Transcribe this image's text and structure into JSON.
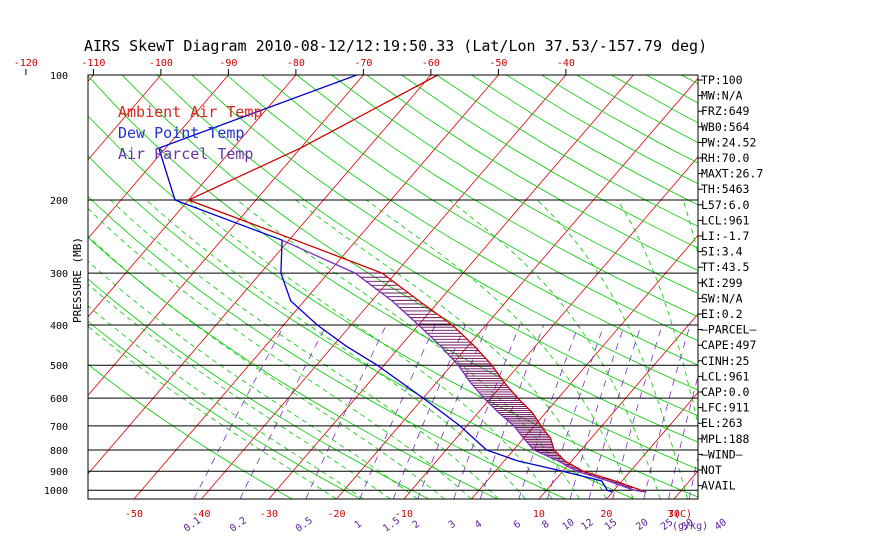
{
  "title": "AIRS SkewT Diagram 2010-08-12/12:19:50.33 (Lat/Lon 37.53/-157.79 deg)",
  "colors": {
    "frame": "#000000",
    "isotherm": "#dd0000",
    "dry_adiabat": "#00cc00",
    "moist_adiabat": "#00cc00",
    "mixing_ratio": "#7a2fbf",
    "temperature": "#cc0000",
    "dewpoint": "#0000cc",
    "parcel": "#7a2fbf",
    "hatch": "#6a0d5a"
  },
  "chart_data": {
    "type": "line",
    "subtype": "skew-T log-P",
    "title": "AIRS SkewT Diagram 2010-08-12/12:19:50.33 (Lat/Lon 37.53/-157.79 deg)",
    "ylabel": "PRESSURE (MB)",
    "ylim": [
      1050,
      100
    ],
    "yscale": "log",
    "y_ticks": [
      100,
      200,
      300,
      400,
      500,
      600,
      700,
      800,
      900,
      1000
    ],
    "x_top_ticks": [
      -120,
      -110,
      -100,
      -90,
      -80,
      -70,
      -60,
      -50,
      -40
    ],
    "x_bottom_ticks": [
      -50,
      -40,
      -30,
      -20,
      -10,
      10,
      20,
      30
    ],
    "x_bottom_unit": "T(C)",
    "mixing_ratio_labels": [
      "0.1",
      "0.2",
      "0.5",
      "1",
      "1.5",
      "2",
      "3",
      "4",
      "6",
      "8",
      "10",
      "12",
      "15",
      "20",
      "25",
      "30",
      "40"
    ],
    "mixing_ratio_unit": "(g/kg)",
    "legend": {
      "placement": "top-left",
      "entries": [
        {
          "label": "Ambient Air Temp",
          "color": "#dd2222"
        },
        {
          "label": "Dew Point Temp",
          "color": "#2233cc"
        },
        {
          "label": "Air Parcel Temp",
          "color": "#6633aa"
        }
      ]
    },
    "series": [
      {
        "name": "Ambient Air Temp",
        "points": [
          [
            100,
            -59
          ],
          [
            150,
            -70
          ],
          [
            200,
            -80
          ],
          [
            250,
            -59
          ],
          [
            300,
            -42
          ],
          [
            350,
            -33
          ],
          [
            400,
            -25
          ],
          [
            450,
            -19
          ],
          [
            500,
            -14
          ],
          [
            550,
            -10
          ],
          [
            600,
            -6
          ],
          [
            650,
            -2
          ],
          [
            700,
            1
          ],
          [
            750,
            4
          ],
          [
            800,
            6
          ],
          [
            850,
            9
          ],
          [
            900,
            13
          ],
          [
            950,
            19
          ],
          [
            1000,
            24
          ],
          [
            1010,
            25
          ]
        ]
      },
      {
        "name": "Dew Point Temp",
        "points": [
          [
            100,
            -71
          ],
          [
            150,
            -91
          ],
          [
            200,
            -82
          ],
          [
            250,
            -61
          ],
          [
            300,
            -57
          ],
          [
            350,
            -52
          ],
          [
            400,
            -45
          ],
          [
            450,
            -38
          ],
          [
            500,
            -31
          ],
          [
            600,
            -20
          ],
          [
            700,
            -11
          ],
          [
            800,
            -4
          ],
          [
            850,
            2
          ],
          [
            900,
            10
          ],
          [
            950,
            17
          ],
          [
            1000,
            19
          ],
          [
            1010,
            20
          ]
        ]
      },
      {
        "name": "Air Parcel Temp",
        "points": [
          [
            250,
            -61
          ],
          [
            300,
            -46
          ],
          [
            350,
            -37
          ],
          [
            400,
            -30
          ],
          [
            450,
            -24
          ],
          [
            500,
            -19
          ],
          [
            550,
            -15
          ],
          [
            600,
            -11
          ],
          [
            650,
            -7
          ],
          [
            700,
            -3
          ],
          [
            750,
            0
          ],
          [
            800,
            3
          ],
          [
            850,
            8
          ],
          [
            900,
            12
          ],
          [
            950,
            18
          ],
          [
            1000,
            23
          ],
          [
            1010,
            25
          ]
        ]
      }
    ]
  },
  "stats": [
    "TP:100",
    "MW:N/A",
    "FRZ:649",
    "WB0:564",
    "PW:24.52",
    "RH:70.0",
    "MAXT:26.7",
    "TH:5463",
    "L57:6.0",
    "LCL:961",
    "LI:-1.7",
    "SI:3.4",
    "TT:43.5",
    "KI:299",
    "SW:N/A",
    "EI:0.2",
    "—PARCEL—",
    "CAPE:497",
    "CINH:25",
    "LCL:961",
    "CAP:0.0",
    "LFC:911",
    "EL:263",
    "MPL:188",
    "—WIND—",
    " NOT",
    " AVAIL"
  ]
}
